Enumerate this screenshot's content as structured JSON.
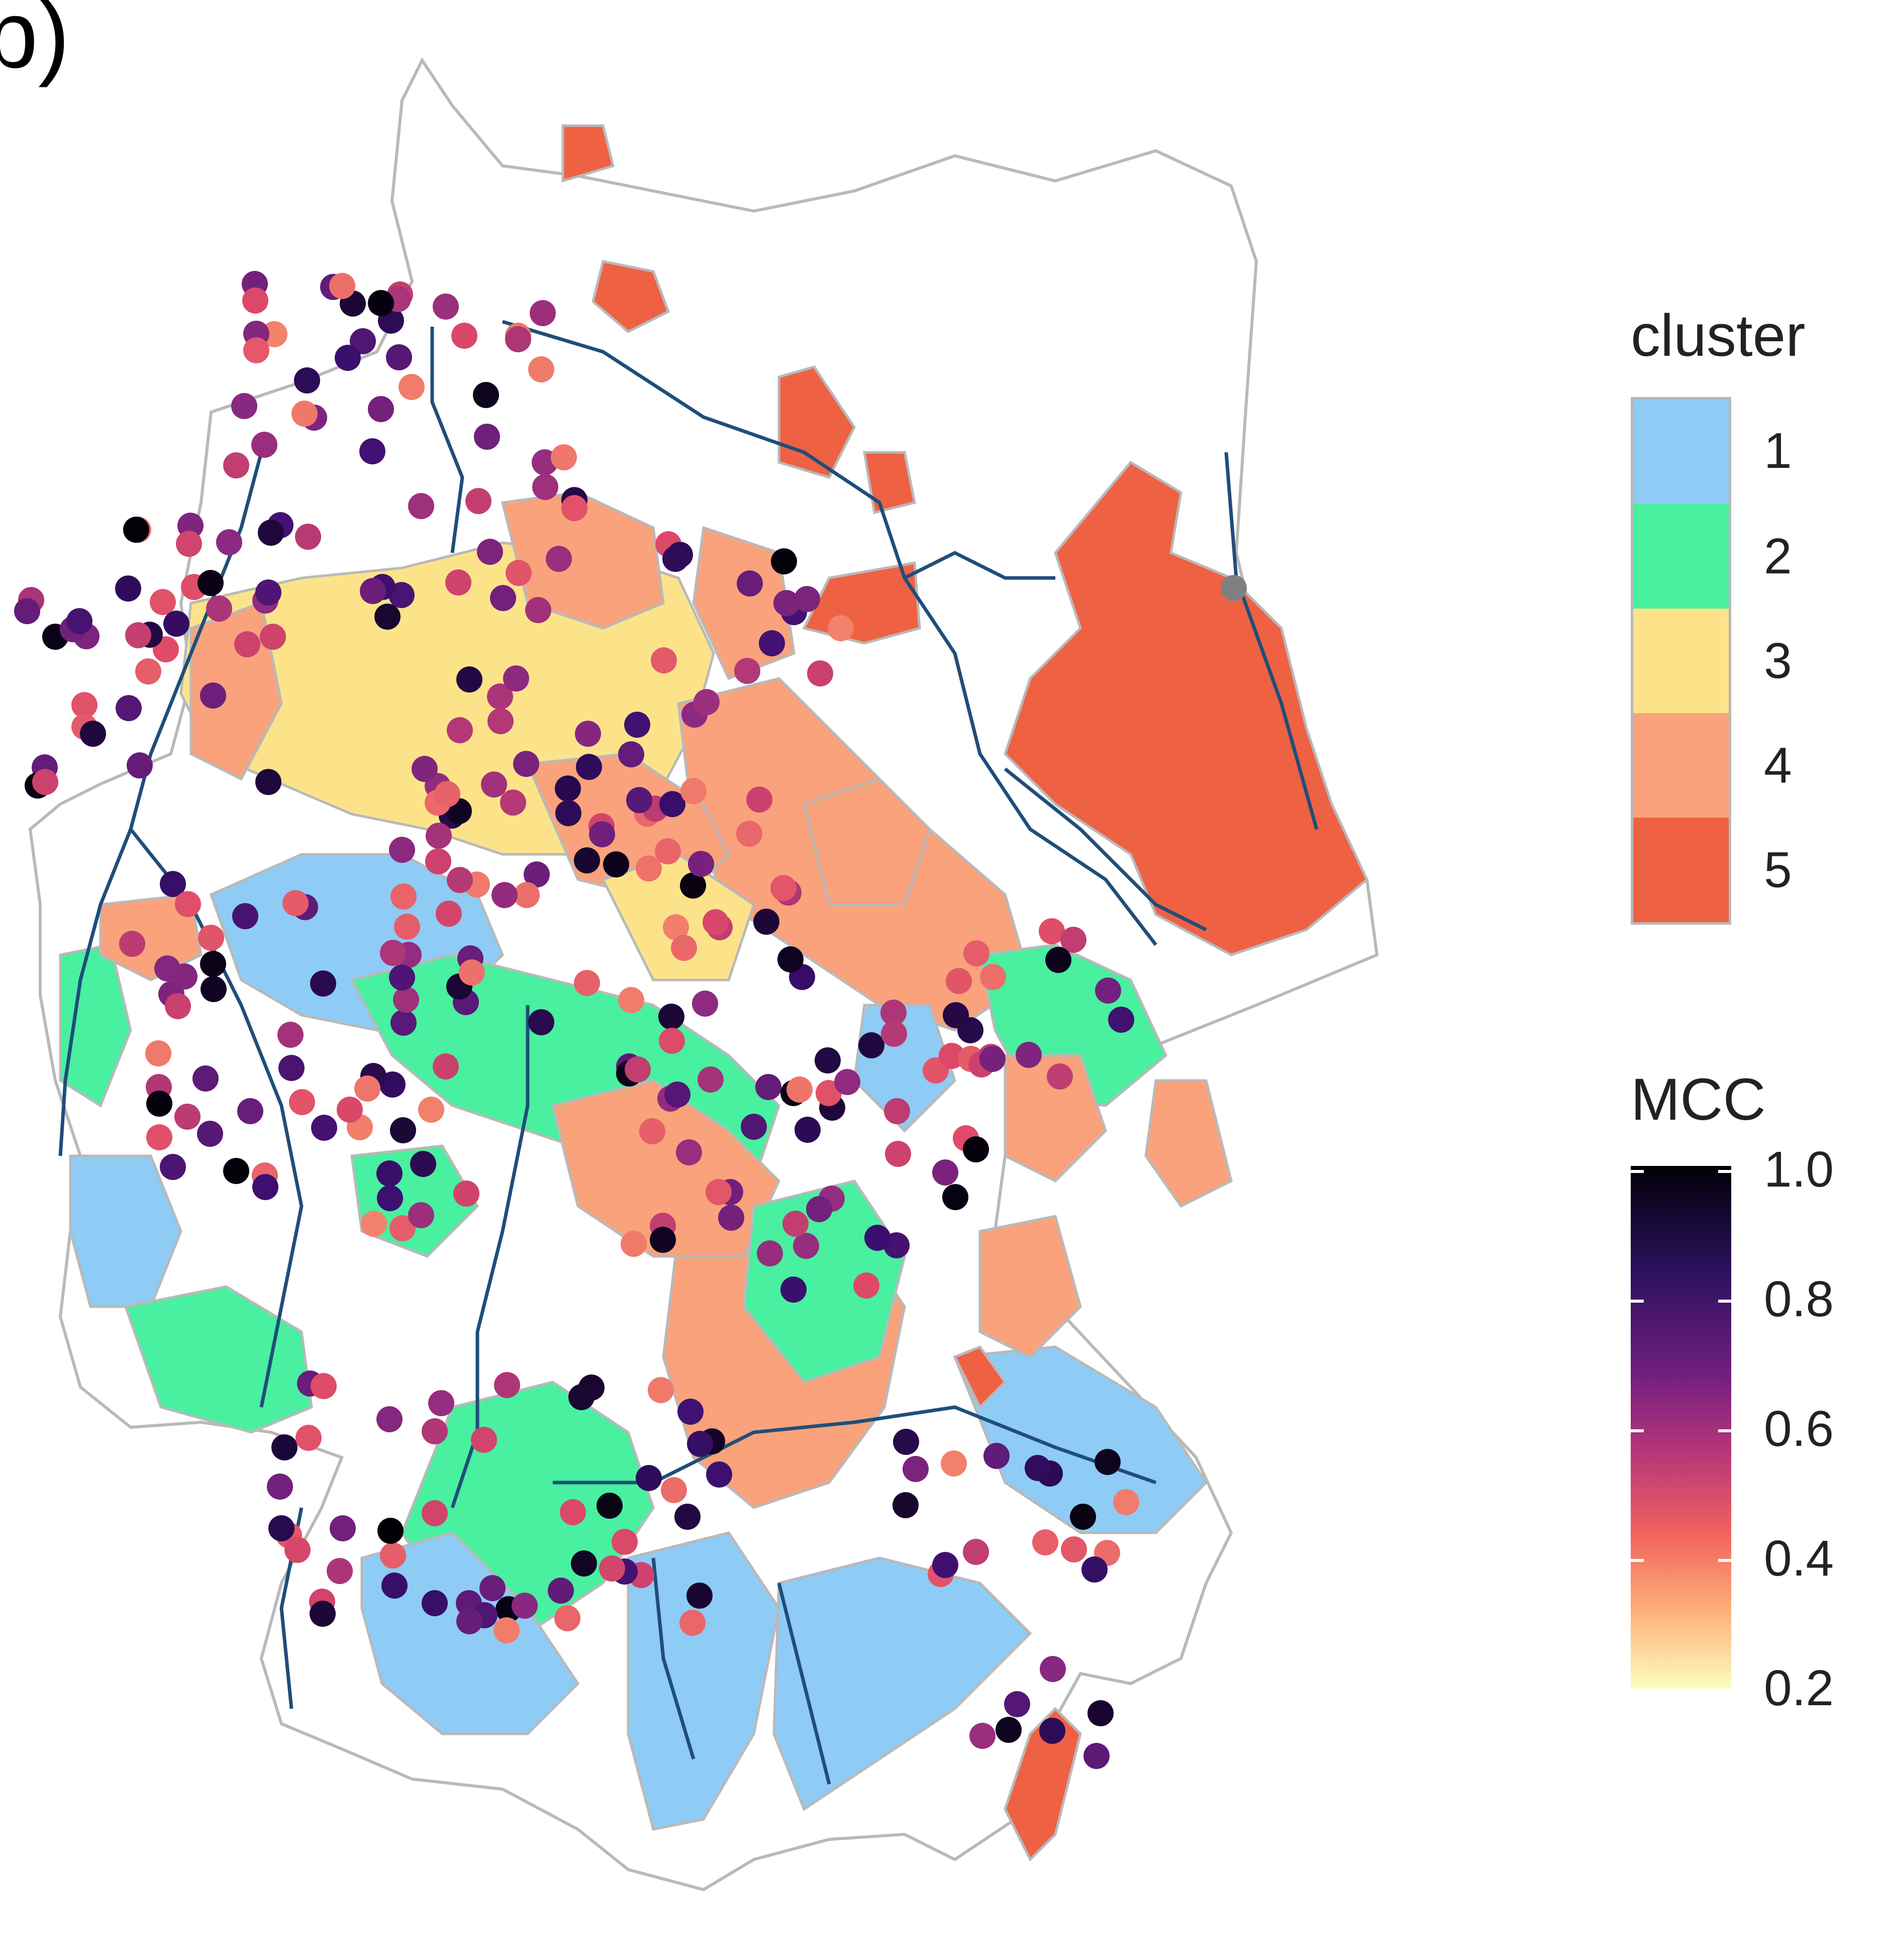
{
  "panel_letter": "b)",
  "legend_cluster": {
    "title": "cluster",
    "items": [
      {
        "label": "1",
        "color": "#8ecbf5"
      },
      {
        "label": "2",
        "color": "#48f0a0"
      },
      {
        "label": "3",
        "color": "#fce38a"
      },
      {
        "label": "4",
        "color": "#f9a27c"
      },
      {
        "label": "5",
        "color": "#ef6143"
      }
    ]
  },
  "legend_mcc": {
    "title": "MCC",
    "ticks": [
      "1.0",
      "0.8",
      "0.6",
      "0.4",
      "0.2"
    ],
    "range": [
      0.2,
      1.0
    ],
    "palette": "magma (reversed)"
  },
  "map_colors": {
    "border": "#b9b9b9",
    "river": "#1f4e79",
    "unclustered_point": "#808080"
  }
}
